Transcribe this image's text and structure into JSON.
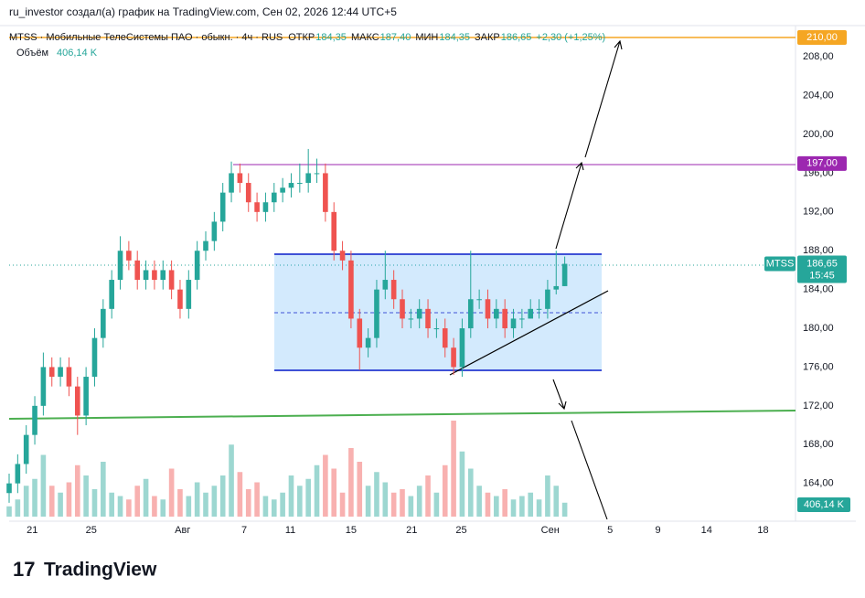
{
  "header": "ru_investor создал(а) график на TradingView.com, Сен 02, 2026 12:44 UTC+5",
  "footer": "TradingView",
  "chart_data": {
    "type": "candlestick",
    "symbol_title": "MTSS · Мобильные ТелеСистемы ПАО · обыкн. · 4ч · RUS",
    "ohlc_legend": [
      {
        "name": "ОТКР",
        "value": 184.35,
        "value_label": "184,35"
      },
      {
        "name": "МАКС",
        "value": 187.4,
        "value_label": "187,40"
      },
      {
        "name": "МИН",
        "value": 184.35,
        "value_label": "184,35"
      },
      {
        "name": "ЗАКР",
        "value": 186.65,
        "value_label": "186,65"
      }
    ],
    "change_label": "+2,30 (+1,25%)",
    "volume_name": "Объём",
    "volume_label": "406,14 K",
    "up_color": "#26a69a",
    "down_color": "#ef5350",
    "ylim": [
      160.1,
      211.04
    ],
    "yticks": [
      {
        "value": 164,
        "label": "164,00"
      },
      {
        "value": 168,
        "label": "168,00"
      },
      {
        "value": 172,
        "label": "172,00"
      },
      {
        "value": 176,
        "label": "176,00"
      },
      {
        "value": 180,
        "label": "180,00"
      },
      {
        "value": 184,
        "label": "184,00"
      },
      {
        "value": 188,
        "label": "188,00"
      },
      {
        "value": 192,
        "label": "192,00"
      },
      {
        "value": 196,
        "label": "196,00"
      },
      {
        "value": 200,
        "label": "200,00"
      },
      {
        "value": 204,
        "label": "204,00"
      },
      {
        "value": 208,
        "label": "208,00"
      }
    ],
    "xlim": [
      0,
      92
    ],
    "xticks": [
      {
        "value": 2.7,
        "label": "21"
      },
      {
        "value": 9.6,
        "label": "25"
      },
      {
        "value": 20.3,
        "label": "Авг"
      },
      {
        "value": 27.5,
        "label": "7"
      },
      {
        "value": 32.9,
        "label": "11"
      },
      {
        "value": 40,
        "label": "15"
      },
      {
        "value": 47.1,
        "label": "21"
      },
      {
        "value": 52.9,
        "label": "25"
      },
      {
        "value": 63.3,
        "label": "Сен"
      },
      {
        "value": 70.3,
        "label": "5"
      },
      {
        "value": 75.9,
        "label": "9"
      },
      {
        "value": 81.6,
        "label": "14"
      },
      {
        "value": 88.2,
        "label": "18"
      }
    ],
    "price_tags": [
      {
        "value": 210,
        "label": "210,00",
        "color": "#f5a623"
      },
      {
        "value": 197,
        "label": "197,00",
        "color": "#9c27b0"
      }
    ],
    "last_price": {
      "symbol": "MTSS",
      "value": 186.65,
      "label": "186,65",
      "timer": "15:45",
      "color": "#26a69a"
    },
    "volume_ylim": [
      0,
      4000
    ],
    "open": [
      163,
      164,
      166,
      169,
      172,
      176,
      175,
      176,
      174,
      171,
      175,
      179,
      182,
      185,
      188,
      187,
      185,
      186,
      185,
      186,
      184,
      182,
      185,
      188,
      189,
      191,
      194,
      196,
      195,
      193,
      192,
      193,
      194,
      194.5,
      195,
      195,
      196,
      196,
      192,
      188,
      187,
      181,
      178,
      179,
      184,
      185,
      183,
      181,
      181,
      182,
      180,
      180,
      178,
      176,
      180,
      183,
      183,
      181,
      182,
      180,
      181,
      181,
      182,
      182,
      184,
      184.35
    ],
    "high": [
      165,
      167,
      170,
      173,
      177.5,
      177,
      177,
      177,
      175,
      176,
      180,
      183,
      186,
      189.5,
      189,
      188,
      187,
      187,
      187,
      187,
      185,
      186,
      189,
      190,
      192,
      195,
      197.2,
      197,
      196,
      194,
      194,
      195,
      195.5,
      196,
      197,
      198.5,
      197.5,
      197,
      193,
      189,
      188,
      182,
      180,
      185,
      188,
      186,
      184,
      182,
      183,
      183,
      181,
      181,
      179,
      181,
      188,
      184,
      184,
      183,
      183,
      182,
      182,
      183,
      183,
      185,
      188,
      187.4
    ],
    "low": [
      162,
      163,
      165,
      168,
      171,
      174,
      174,
      173,
      169,
      170,
      174,
      178,
      181,
      184,
      186,
      184,
      184,
      184,
      184,
      183,
      181,
      181,
      184,
      187,
      188,
      190,
      193,
      194,
      192,
      191,
      191,
      192,
      193,
      193.5,
      194,
      194,
      195,
      191,
      187,
      186,
      180,
      175.7,
      177,
      178,
      183,
      182,
      180,
      180,
      180,
      179,
      179,
      177,
      175.2,
      175,
      179,
      182,
      180,
      180,
      179,
      179,
      180,
      181,
      181,
      181,
      183.5,
      184.35
    ],
    "close": [
      164,
      166,
      169,
      172,
      176,
      175,
      176,
      174,
      171,
      175,
      179,
      182,
      185,
      188,
      187,
      185,
      186,
      185,
      186,
      184,
      182,
      185,
      188,
      189,
      191,
      194,
      196,
      195,
      193,
      192,
      193,
      194,
      194.5,
      195,
      195,
      196,
      196,
      192,
      188,
      187,
      181,
      178,
      179,
      184,
      185,
      183,
      181,
      181,
      182,
      180,
      180,
      178,
      176,
      180,
      183,
      183,
      181,
      182,
      180,
      181,
      181,
      182,
      182,
      184,
      184.35,
      186.65
    ],
    "volume": [
      300,
      500,
      900,
      1100,
      1800,
      900,
      700,
      1000,
      1500,
      1200,
      800,
      1600,
      700,
      600,
      500,
      900,
      1100,
      600,
      500,
      1400,
      800,
      600,
      1000,
      700,
      900,
      1200,
      2100,
      1300,
      800,
      1000,
      600,
      500,
      700,
      1200,
      900,
      1100,
      1500,
      1800,
      1400,
      700,
      2000,
      1600,
      900,
      1300,
      1000,
      700,
      800,
      600,
      900,
      1200,
      700,
      1500,
      2800,
      1900,
      1400,
      900,
      700,
      600,
      800,
      500,
      600,
      700,
      500,
      1200,
      900,
      406.14
    ]
  }
}
